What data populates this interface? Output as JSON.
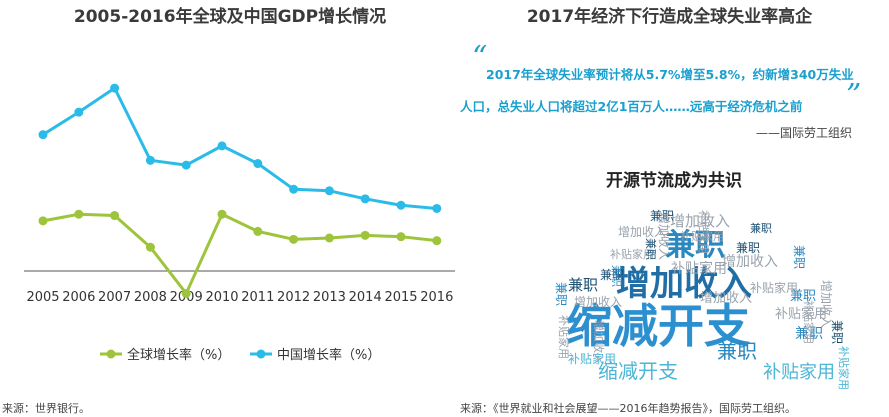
{
  "left": {
    "title": "2005-2016年全球及中国GDP增长情况",
    "source": "来源：世界银行。"
  },
  "right": {
    "title": "2017年经济下行造成全球失业率高企",
    "quote_line1": "2017年全球失业率预计将从5.7%增至5.8%，约新增340万失业",
    "quote_line2": "人口，总失业人口将超过2亿1百万人……远高于经济危机之前",
    "attribution": "——国际劳工组织",
    "subtitle": "开源节流成为共识",
    "source": "来源：《世界就业和社会展望——2016年趋势报告》，国际劳工组织。",
    "cloud_words": [
      "兼职",
      "增加收入",
      "缩减开支",
      "补贴家用"
    ]
  },
  "colors": {
    "global": "#9dc43a",
    "china": "#2bbbe8",
    "axis": "#555555"
  },
  "chart_data": {
    "type": "line",
    "categories": [
      "2005",
      "2006",
      "2007",
      "2008",
      "2009",
      "2010",
      "2011",
      "2012",
      "2013",
      "2014",
      "2015",
      "2016"
    ],
    "series": [
      {
        "name": "全球增长率（%）",
        "values": [
          3.8,
          4.3,
          4.2,
          1.8,
          -1.7,
          4.3,
          3.0,
          2.4,
          2.5,
          2.7,
          2.6,
          2.3
        ]
      },
      {
        "name": "中国增长率（%）",
        "values": [
          11.3,
          12.7,
          14.2,
          9.7,
          9.4,
          10.6,
          9.5,
          7.9,
          7.8,
          7.3,
          6.9,
          6.7
        ]
      }
    ],
    "legend_position": "bottom",
    "grid": false
  }
}
